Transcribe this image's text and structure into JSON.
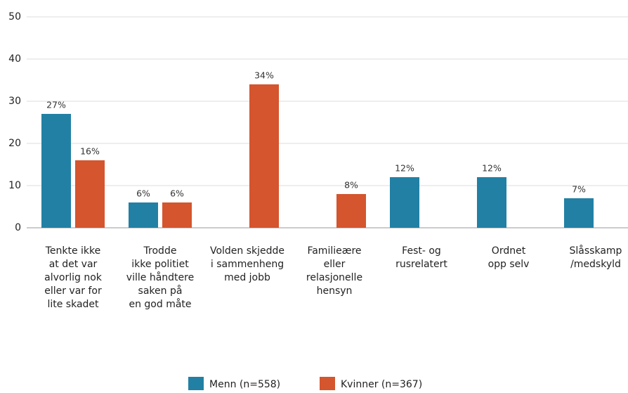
{
  "chart_data": {
    "type": "bar",
    "categories": [
      [
        "Tenkte ikke",
        "at det var",
        "alvorlig nok",
        "eller var for",
        "lite skadet"
      ],
      [
        "Trodde",
        "ikke politiet",
        "ville håndtere",
        "saken på",
        "en god måte"
      ],
      [
        "Volden skjedde",
        "i sammenheng",
        "med jobb"
      ],
      [
        "Familieære",
        "eller",
        "relasjonelle",
        "hensyn"
      ],
      [
        "Fest- og",
        "rusrelatert"
      ],
      [
        "Ordnet",
        "opp selv"
      ],
      [
        "Slåsskamp",
        "/medskyld"
      ]
    ],
    "series": [
      {
        "name": "Menn (n=558)",
        "color": "#2280a4",
        "values": [
          27,
          6,
          null,
          null,
          12,
          12,
          7
        ],
        "value_labels": [
          "27%",
          "6%",
          null,
          null,
          "12%",
          "12%",
          "7%"
        ]
      },
      {
        "name": "Kvinner (n=367)",
        "color": "#d4552e",
        "values": [
          16,
          6,
          34,
          8,
          null,
          null,
          null
        ],
        "value_labels": [
          "16%",
          "6%",
          "34%",
          "8%",
          null,
          null,
          null
        ]
      }
    ],
    "ylim": [
      0,
      50
    ],
    "yticks": [
      0,
      10,
      20,
      30,
      40,
      50
    ],
    "grid": true,
    "legend": "bottom"
  }
}
